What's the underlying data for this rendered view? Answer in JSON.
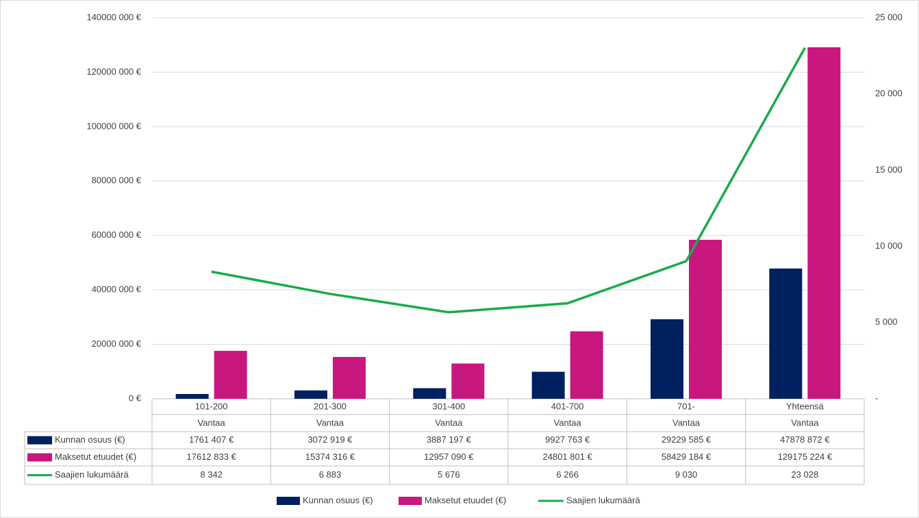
{
  "chart_data": {
    "type": "bar",
    "categories": [
      "101-200",
      "201-300",
      "301-400",
      "401-700",
      "701-",
      "Yhteensä"
    ],
    "categories_level2": [
      "Vantaa",
      "Vantaa",
      "Vantaa",
      "Vantaa",
      "Vantaa",
      "Vantaa"
    ],
    "series": [
      {
        "name": "Kunnan osuus (€)",
        "color": "#002060",
        "type": "bar",
        "values": [
          1761407,
          3072919,
          3887197,
          9927763,
          29229585,
          47878872
        ],
        "value_labels": [
          "1761 407 €",
          "3072 919 €",
          "3887 197 €",
          "9927 763 €",
          "29229 585 €",
          "47878 872 €"
        ]
      },
      {
        "name": "Maksetut etuudet (€)",
        "color": "#c8177f",
        "type": "bar",
        "values": [
          17612833,
          15374316,
          12957090,
          24801801,
          58429184,
          129175224
        ],
        "value_labels": [
          "17612 833 €",
          "15374 316 €",
          "12957 090 €",
          "24801 801 €",
          "58429 184 €",
          "129175 224 €"
        ]
      },
      {
        "name": "Saajien lukumäärä",
        "color": "#1aab4b",
        "type": "line",
        "axis": "y2",
        "values": [
          8342,
          6883,
          5676,
          6266,
          9030,
          23028
        ],
        "value_labels": [
          "8 342",
          "6 883",
          "5 676",
          "6 266",
          "9 030",
          "23 028"
        ]
      }
    ],
    "ylim": [
      0,
      140000000
    ],
    "yticks": [
      {
        "value": 0,
        "label": "0 €"
      },
      {
        "value": 20000000,
        "label": "20000 000 €"
      },
      {
        "value": 40000000,
        "label": "40000 000 €"
      },
      {
        "value": 60000000,
        "label": "60000 000 €"
      },
      {
        "value": 80000000,
        "label": "80000 000 €"
      },
      {
        "value": 100000000,
        "label": "100000 000 €"
      },
      {
        "value": 120000000,
        "label": "120000 000 €"
      },
      {
        "value": 140000000,
        "label": "140000 000 €"
      }
    ],
    "y2lim": [
      0,
      25000
    ],
    "y2ticks": [
      {
        "value": 0,
        "label": "-"
      },
      {
        "value": 5000,
        "label": "5 000"
      },
      {
        "value": 10000,
        "label": "10 000"
      },
      {
        "value": 15000,
        "label": "15 000"
      },
      {
        "value": 20000,
        "label": "20 000"
      },
      {
        "value": 25000,
        "label": "25 000"
      }
    ],
    "grid": true
  }
}
